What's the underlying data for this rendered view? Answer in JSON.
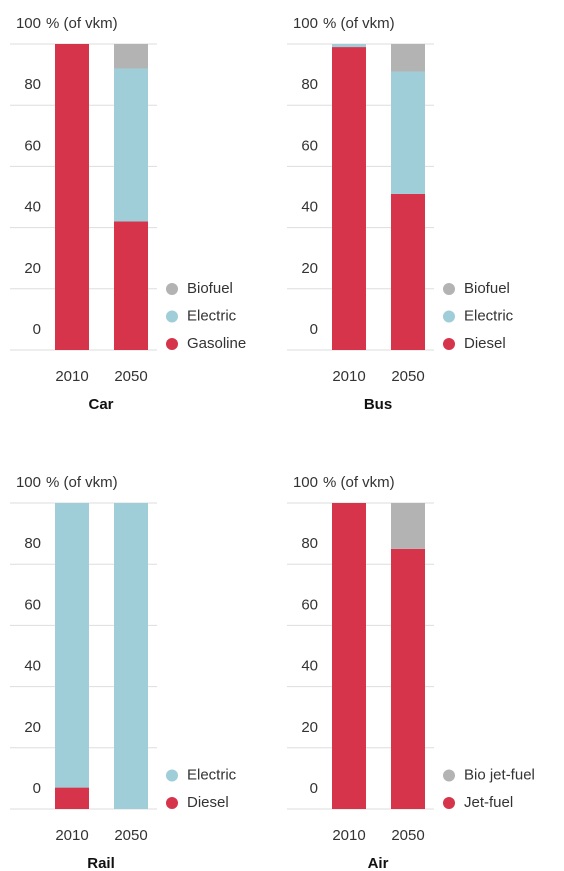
{
  "chart_data": [
    {
      "type": "bar",
      "stacked": true,
      "title": "Car",
      "y_label": "% (of vkm)",
      "categories": [
        "2010",
        "2050"
      ],
      "series": [
        {
          "name": "Gasoline",
          "color": "#d6344b",
          "values": [
            100,
            42
          ]
        },
        {
          "name": "Electric",
          "color": "#9fcdd8",
          "values": [
            0,
            50
          ]
        },
        {
          "name": "Biofuel",
          "color": "#b3b3b3",
          "values": [
            0,
            8
          ]
        }
      ],
      "ylim": [
        0,
        100
      ],
      "yticks": [
        0,
        20,
        40,
        60,
        80,
        100
      ],
      "grid": true
    },
    {
      "type": "bar",
      "stacked": true,
      "title": "Bus",
      "y_label": "% (of vkm)",
      "categories": [
        "2010",
        "2050"
      ],
      "series": [
        {
          "name": "Diesel",
          "color": "#d6344b",
          "values": [
            99,
            51
          ]
        },
        {
          "name": "Electric",
          "color": "#9fcdd8",
          "values": [
            1,
            40
          ]
        },
        {
          "name": "Biofuel",
          "color": "#b3b3b3",
          "values": [
            0,
            9
          ]
        }
      ],
      "ylim": [
        0,
        100
      ],
      "yticks": [
        0,
        20,
        40,
        60,
        80,
        100
      ],
      "grid": true
    },
    {
      "type": "bar",
      "stacked": true,
      "title": "Rail",
      "y_label": "% (of vkm)",
      "categories": [
        "2010",
        "2050"
      ],
      "series": [
        {
          "name": "Diesel",
          "color": "#d6344b",
          "values": [
            7,
            0
          ]
        },
        {
          "name": "Electric",
          "color": "#9fcdd8",
          "values": [
            93,
            100
          ]
        }
      ],
      "ylim": [
        0,
        100
      ],
      "yticks": [
        0,
        20,
        40,
        60,
        80,
        100
      ],
      "grid": true
    },
    {
      "type": "bar",
      "stacked": true,
      "title": "Air",
      "y_label": "% (of vkm)",
      "categories": [
        "2010",
        "2050"
      ],
      "series": [
        {
          "name": "Jet-fuel",
          "color": "#d6344b",
          "values": [
            100,
            85
          ]
        },
        {
          "name": "Bio jet-fuel",
          "color": "#b3b3b3",
          "values": [
            0,
            15
          ]
        }
      ],
      "ylim": [
        0,
        100
      ],
      "yticks": [
        0,
        20,
        40,
        60,
        80,
        100
      ],
      "grid": true
    }
  ]
}
